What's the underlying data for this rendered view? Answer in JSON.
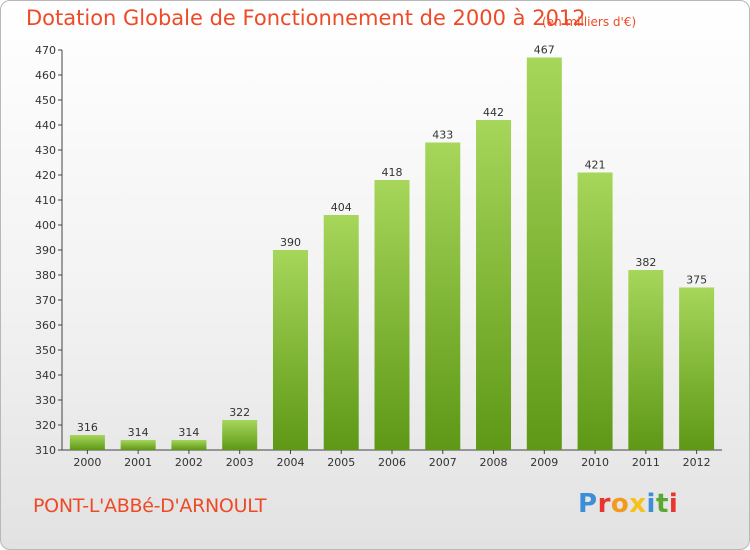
{
  "title": "Dotation Globale de Fonctionnement de 2000 à 2012",
  "subtitle": "(en milliers d'€)",
  "city": "PONT-L'ABBé-D'ARNOULT",
  "logo": {
    "text": "Proxiti",
    "letters": [
      "P",
      "r",
      "o",
      "x",
      "i",
      "t",
      "i"
    ],
    "colors": [
      "#3b8fd8",
      "#e8352d",
      "#f39a1e",
      "#f6c21a",
      "#3b8fd8",
      "#5aa832",
      "#e8352d"
    ]
  },
  "colors": {
    "bar_light": "#a6d65a",
    "bar_dark": "#5e9816",
    "text_accent": "#ee4a26"
  },
  "chart_data": {
    "type": "bar",
    "categories": [
      "2000",
      "2001",
      "2002",
      "2003",
      "2004",
      "2005",
      "2006",
      "2007",
      "2008",
      "2009",
      "2010",
      "2011",
      "2012"
    ],
    "values": [
      316,
      314,
      314,
      322,
      390,
      404,
      418,
      433,
      442,
      467,
      421,
      382,
      375
    ],
    "ylim": [
      310,
      470
    ],
    "yticks": [
      310,
      320,
      330,
      340,
      350,
      360,
      370,
      380,
      390,
      400,
      410,
      420,
      430,
      440,
      450,
      460,
      470
    ],
    "grid": false,
    "xlabel": "",
    "ylabel": ""
  }
}
